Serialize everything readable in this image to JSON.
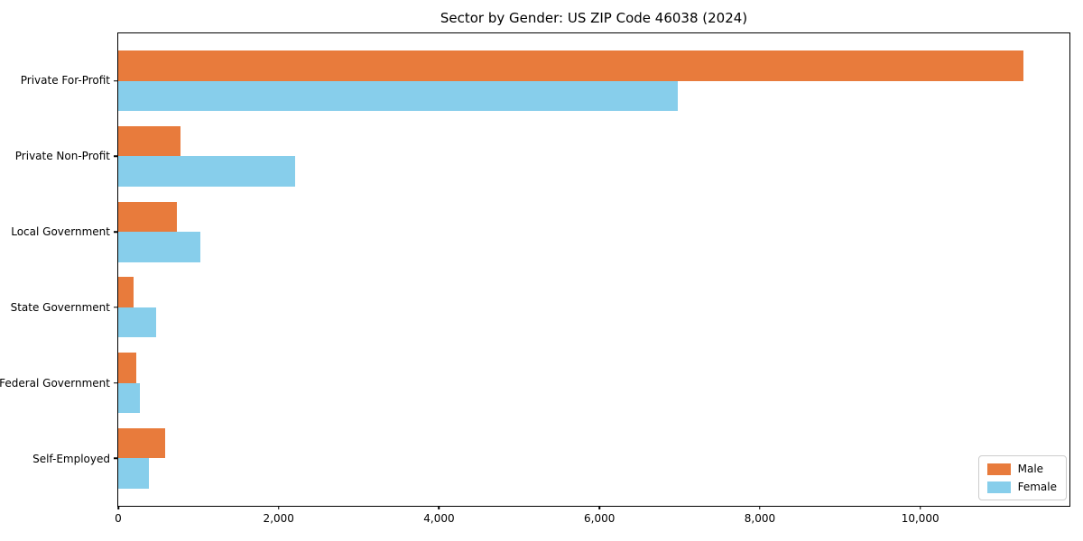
{
  "chart_data": {
    "type": "bar",
    "orientation": "horizontal",
    "title": "Sector by Gender: US ZIP Code 46038 (2024)",
    "categories": [
      "Private For-Profit",
      "Private Non-Profit",
      "Local Government",
      "State Government",
      "Federal Government",
      "Self-Employed"
    ],
    "series": [
      {
        "name": "Male",
        "color": "#e87b3c",
        "values": [
          11290,
          780,
          730,
          190,
          230,
          590
        ]
      },
      {
        "name": "Female",
        "color": "#87ceeb",
        "values": [
          6980,
          2200,
          1020,
          475,
          265,
          380
        ]
      }
    ],
    "xlabel": "",
    "ylabel": "",
    "xlim": [
      0,
      11860
    ],
    "xticks": {
      "values": [
        0,
        2000,
        4000,
        6000,
        8000,
        10000
      ],
      "labels": [
        "0",
        "2,000",
        "4,000",
        "6,000",
        "8,000",
        "10,000"
      ]
    },
    "grid": false,
    "legend": {
      "position": "lower right",
      "entries": [
        "Male",
        "Female"
      ]
    }
  },
  "colors": {
    "male": "#e87b3c",
    "female": "#87ceeb",
    "spine": "#000000",
    "legend_border": "#cccccc",
    "background": "#ffffff"
  }
}
